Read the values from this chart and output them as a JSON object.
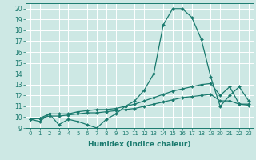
{
  "xlabel": "Humidex (Indice chaleur)",
  "background_color": "#cde8e4",
  "grid_color": "#ffffff",
  "line_color": "#1a7a6e",
  "xlim": [
    -0.5,
    23.5
  ],
  "ylim": [
    9,
    20.5
  ],
  "yticks": [
    9,
    10,
    11,
    12,
    13,
    14,
    15,
    16,
    17,
    18,
    19,
    20
  ],
  "xticks": [
    0,
    1,
    2,
    3,
    4,
    5,
    6,
    7,
    8,
    9,
    10,
    11,
    12,
    13,
    14,
    15,
    16,
    17,
    18,
    19,
    20,
    21,
    22,
    23
  ],
  "series": [
    [
      9.8,
      9.6,
      10.3,
      9.3,
      9.8,
      9.6,
      9.3,
      9.0,
      9.8,
      10.3,
      11.0,
      11.5,
      12.5,
      14.0,
      18.5,
      20.0,
      20.0,
      19.2,
      17.2,
      13.7,
      11.0,
      12.0,
      12.8,
      11.5
    ],
    [
      9.8,
      9.9,
      10.3,
      10.3,
      10.3,
      10.5,
      10.6,
      10.7,
      10.7,
      10.8,
      11.0,
      11.2,
      11.5,
      11.8,
      12.1,
      12.4,
      12.6,
      12.8,
      13.0,
      13.1,
      12.0,
      12.8,
      11.2,
      11.2
    ],
    [
      9.8,
      9.9,
      10.1,
      10.1,
      10.2,
      10.3,
      10.4,
      10.4,
      10.5,
      10.6,
      10.7,
      10.8,
      11.0,
      11.2,
      11.4,
      11.6,
      11.8,
      11.9,
      12.0,
      12.1,
      11.5,
      11.5,
      11.2,
      11.1
    ]
  ]
}
